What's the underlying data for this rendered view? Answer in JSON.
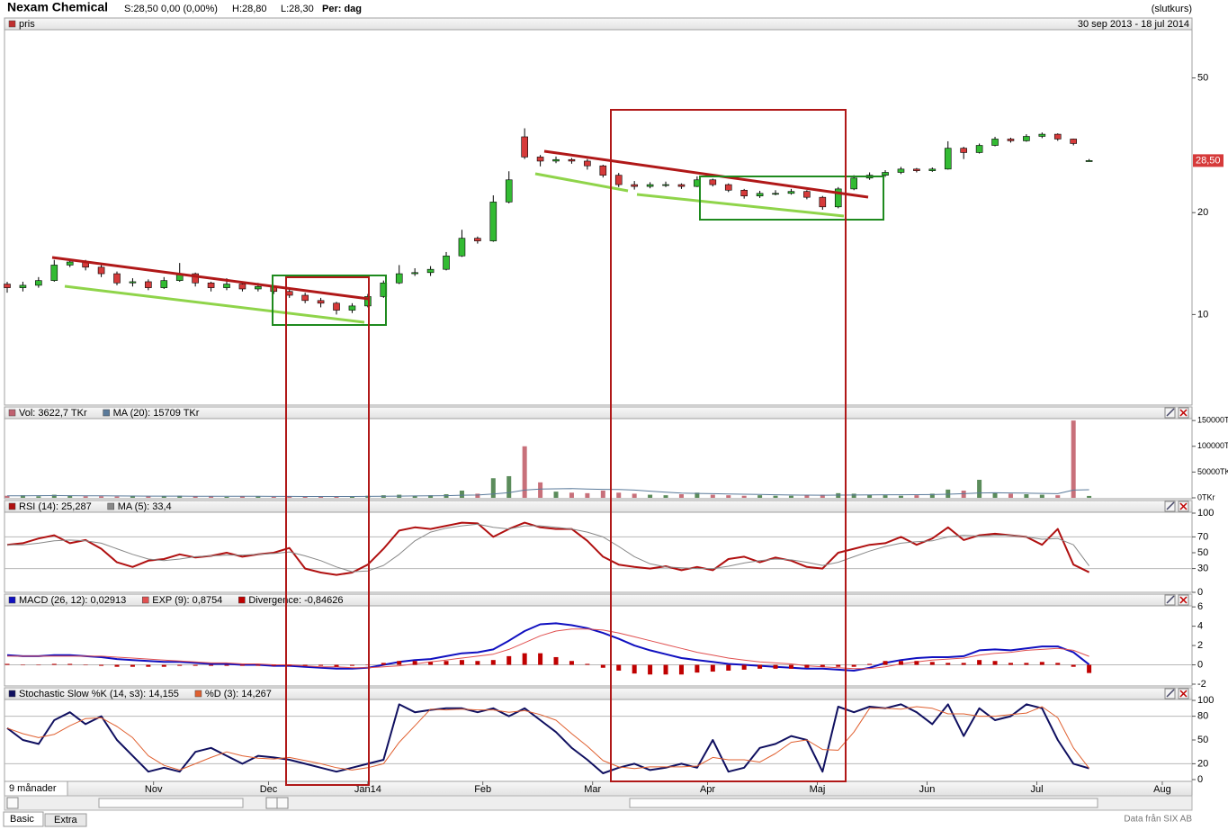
{
  "header": {
    "title": "Nexam Chemical",
    "quote": "S:28,50 0,00 (0,00%)",
    "high": "H:28,80",
    "low": "L:28,30",
    "period": "Per: dag",
    "mode": "(slutkurs)"
  },
  "x_axis": {
    "label": "9 månader",
    "xlim": [
      0,
      226
    ],
    "xticks": [
      {
        "value": 28,
        "label": "Nov"
      },
      {
        "value": 50,
        "label": "Dec"
      },
      {
        "value": 69,
        "label": "Jan14"
      },
      {
        "value": 91,
        "label": "Feb"
      },
      {
        "value": 112,
        "label": "Mar"
      },
      {
        "value": 134,
        "label": "Apr"
      },
      {
        "value": 155,
        "label": "Maj"
      },
      {
        "value": 176,
        "label": "Jun"
      },
      {
        "value": 197,
        "label": "Jul"
      },
      {
        "value": 221,
        "label": "Aug"
      }
    ],
    "x": [
      0,
      3,
      6,
      9,
      12,
      15,
      18,
      21,
      24,
      27,
      30,
      33,
      36,
      39,
      42,
      45,
      48,
      51,
      54,
      57,
      60,
      63,
      66,
      69,
      72,
      75,
      78,
      81,
      84,
      87,
      90,
      93,
      96,
      99,
      102,
      105,
      108,
      111,
      114,
      117,
      120,
      123,
      126,
      129,
      132,
      135,
      138,
      141,
      144,
      147,
      150,
      153,
      156,
      159,
      162,
      165,
      168,
      171,
      174,
      177,
      180,
      183,
      186,
      189,
      192,
      195,
      198,
      201,
      204,
      207
    ]
  },
  "footer": {
    "tabs": [
      "Basic",
      "Extra"
    ],
    "source": "Data från SIX AB"
  },
  "chart_data": [
    {
      "type": "candlestick",
      "legend": "pris",
      "legend_color": "#c03030",
      "subtitle": "30 sep 2013 - 18 jul 2014",
      "log_scale": true,
      "ylim": [
        5.4,
        69
      ],
      "yticks": [
        10,
        20,
        50
      ],
      "up_color": "#33bb33",
      "down_color": "#d63a3a",
      "last_label": {
        "value": 28.5,
        "label": "28,50"
      },
      "open": [
        12.3,
        12.0,
        12.2,
        12.6,
        14.0,
        14.3,
        13.8,
        13.2,
        12.4,
        12.5,
        12.0,
        12.6,
        13.2,
        12.4,
        12.0,
        12.3,
        11.9,
        12.1,
        11.7,
        11.4,
        11.0,
        10.8,
        10.3,
        10.6,
        11.3,
        12.4,
        13.2,
        13.3,
        13.6,
        14.9,
        16.8,
        16.5,
        21.5,
        33.5,
        29.2,
        28.4,
        28.7,
        28.4,
        27.5,
        25.8,
        24.2,
        23.9,
        24.2,
        24.2,
        23.9,
        25.0,
        24.2,
        23.3,
        22.4,
        22.8,
        22.8,
        23.1,
        22.2,
        20.8,
        23.5,
        25.3,
        25.8,
        26.3,
        26.9,
        26.6,
        26.9,
        31.0,
        30.1,
        31.6,
        33.0,
        32.6,
        33.6,
        34.1,
        33.0,
        28.3
      ],
      "high": [
        12.5,
        12.5,
        12.9,
        14.5,
        14.6,
        14.5,
        14.0,
        13.4,
        12.8,
        12.7,
        12.9,
        14.2,
        13.3,
        12.5,
        12.8,
        12.5,
        12.4,
        12.2,
        11.9,
        11.6,
        11.2,
        10.9,
        10.8,
        11.5,
        12.6,
        14.0,
        13.7,
        13.9,
        15.3,
        17.8,
        17.0,
        22.5,
        26.5,
        35.5,
        29.6,
        29.3,
        29.0,
        28.8,
        27.7,
        26.2,
        24.8,
        24.6,
        24.7,
        24.4,
        25.6,
        25.2,
        24.4,
        23.5,
        23.2,
        23.3,
        23.5,
        23.3,
        22.4,
        23.8,
        25.8,
        26.3,
        26.7,
        27.3,
        27.1,
        27.2,
        32.5,
        31.3,
        32.0,
        33.5,
        33.3,
        34.1,
        34.5,
        34.3,
        33.1,
        28.8
      ],
      "low": [
        11.6,
        11.7,
        12.0,
        12.5,
        13.8,
        13.5,
        12.9,
        12.2,
        12.1,
        11.8,
        11.9,
        12.5,
        12.1,
        11.7,
        11.8,
        11.7,
        11.7,
        11.5,
        11.2,
        10.8,
        10.5,
        10.0,
        10.1,
        10.5,
        11.2,
        12.3,
        13.0,
        13.0,
        13.5,
        14.8,
        16.2,
        16.4,
        21.3,
        28.8,
        27.4,
        28.0,
        27.9,
        26.8,
        25.4,
        23.8,
        23.4,
        23.6,
        23.8,
        23.5,
        23.8,
        23.9,
        23.0,
        22.0,
        22.1,
        22.5,
        22.6,
        21.9,
        20.4,
        20.6,
        23.3,
        25.0,
        25.5,
        26.0,
        26.3,
        26.4,
        26.8,
        28.8,
        29.9,
        31.4,
        32.2,
        32.4,
        33.2,
        32.6,
        31.6,
        28.3
      ],
      "close": [
        12.0,
        12.2,
        12.6,
        14.0,
        14.3,
        13.8,
        13.2,
        12.4,
        12.5,
        12.0,
        12.6,
        13.2,
        12.4,
        12.0,
        12.3,
        11.9,
        12.1,
        11.7,
        11.4,
        11.0,
        10.8,
        10.3,
        10.6,
        11.3,
        12.4,
        13.2,
        13.3,
        13.6,
        14.9,
        16.8,
        16.5,
        21.5,
        25.0,
        29.2,
        28.4,
        28.7,
        28.4,
        27.5,
        25.8,
        24.2,
        23.9,
        24.2,
        24.2,
        23.9,
        25.0,
        24.2,
        23.3,
        22.4,
        22.8,
        22.8,
        23.1,
        22.2,
        20.8,
        23.5,
        25.3,
        25.8,
        26.3,
        26.9,
        26.6,
        26.9,
        31.0,
        30.1,
        31.6,
        33.0,
        32.6,
        33.6,
        34.1,
        33.0,
        32.0,
        28.5
      ]
    },
    {
      "type": "bar",
      "ylim": [
        0,
        152000
      ],
      "yticks": [
        {
          "value": 0,
          "label": "0TKr"
        },
        {
          "value": 50000,
          "label": "50000TKr"
        },
        {
          "value": 100000,
          "label": "100000TKr"
        },
        {
          "value": 150000,
          "label": "150000TKr"
        }
      ],
      "series": [
        {
          "name": "Vol: 3622,7 TKr",
          "color": "#c06070",
          "up_color": "#5b8c5b",
          "down_color": "#c8707a",
          "values": [
            4000,
            5000,
            3000,
            6000,
            4000,
            3000,
            3000,
            2500,
            3000,
            2500,
            3500,
            4000,
            3000,
            2500,
            2000,
            3000,
            2500,
            2000,
            3000,
            2500,
            2000,
            3000,
            2500,
            4000,
            5000,
            6000,
            4000,
            5000,
            7000,
            14000,
            8000,
            38000,
            42000,
            100000,
            30000,
            12000,
            10000,
            9000,
            14000,
            10000,
            8000,
            6000,
            5000,
            7000,
            10000,
            6000,
            5000,
            4000,
            5000,
            4000,
            4000,
            5000,
            6000,
            9000,
            8000,
            6000,
            5000,
            4000,
            5000,
            8000,
            16000,
            14000,
            35000,
            10000,
            8000,
            7000,
            6000,
            5000,
            150000,
            3622.7
          ]
        },
        {
          "name": "MA (20): 15709 TKr",
          "color": "#5a7a9a",
          "type": "line",
          "values": [
            4000,
            4000,
            4200,
            4300,
            4200,
            4000,
            3900,
            3700,
            3500,
            3400,
            3300,
            3300,
            3200,
            3100,
            3000,
            3000,
            2900,
            2800,
            2800,
            2700,
            2700,
            2700,
            2700,
            2800,
            3000,
            3300,
            3600,
            3800,
            4200,
            5000,
            5500,
            7500,
            10000,
            15000,
            17000,
            17500,
            17800,
            17000,
            16500,
            16000,
            15000,
            13000,
            11000,
            9000,
            8500,
            8000,
            7500,
            7000,
            6500,
            6000,
            5500,
            5200,
            5000,
            5200,
            5500,
            5800,
            6000,
            6000,
            6100,
            6300,
            7000,
            8000,
            9500,
            9800,
            9500,
            9000,
            8500,
            8000,
            15000,
            15709
          ]
        }
      ]
    },
    {
      "type": "line",
      "ylim": [
        0,
        100
      ],
      "yticks": [
        0,
        30,
        50,
        70,
        100
      ],
      "ref_lines": [
        30,
        70
      ],
      "series": [
        {
          "name": "RSI (14): 25,287",
          "color": "#b01010",
          "values": [
            60,
            62,
            68,
            72,
            62,
            66,
            55,
            38,
            32,
            40,
            42,
            48,
            44,
            46,
            50,
            45,
            48,
            50,
            56,
            30,
            25,
            22,
            25,
            35,
            55,
            78,
            82,
            80,
            84,
            88,
            87,
            70,
            80,
            88,
            82,
            80,
            80,
            65,
            45,
            35,
            32,
            30,
            33,
            28,
            32,
            28,
            42,
            45,
            38,
            44,
            40,
            32,
            30,
            50,
            55,
            60,
            62,
            70,
            60,
            68,
            82,
            66,
            72,
            74,
            72,
            70,
            60,
            80,
            35,
            25.287
          ]
        },
        {
          "name": "MA (5): 33,4",
          "color": "#888888",
          "values": [
            60,
            60,
            62,
            65,
            66,
            65,
            62,
            55,
            48,
            42,
            40,
            42,
            45,
            46,
            47,
            47,
            48,
            49,
            51,
            46,
            40,
            32,
            26,
            27,
            34,
            48,
            65,
            76,
            81,
            84,
            86,
            82,
            80,
            84,
            84,
            82,
            80,
            76,
            70,
            58,
            45,
            36,
            32,
            31,
            30,
            30,
            33,
            37,
            40,
            42,
            41,
            38,
            34,
            38,
            45,
            52,
            58,
            62,
            64,
            65,
            70,
            72,
            71,
            72,
            72,
            70,
            67,
            68,
            60,
            33.4
          ]
        }
      ]
    },
    {
      "type": "line",
      "ylim": [
        -2,
        6.2
      ],
      "yticks": [
        -2,
        0,
        2,
        4,
        6
      ],
      "ref_lines": [
        0
      ],
      "series": [
        {
          "name": "MACD (26, 12): 0,02913",
          "color": "#1010c0",
          "values": [
            1.0,
            0.9,
            0.9,
            1.0,
            1.0,
            0.9,
            0.8,
            0.6,
            0.5,
            0.4,
            0.3,
            0.3,
            0.2,
            0.1,
            0.1,
            0.0,
            0.0,
            -0.1,
            -0.1,
            -0.2,
            -0.3,
            -0.4,
            -0.4,
            -0.3,
            0.0,
            0.3,
            0.5,
            0.6,
            0.9,
            1.2,
            1.3,
            1.6,
            2.5,
            3.5,
            4.2,
            4.3,
            4.1,
            3.8,
            3.3,
            2.7,
            2.0,
            1.5,
            1.1,
            0.7,
            0.5,
            0.3,
            0.1,
            0.0,
            -0.1,
            -0.2,
            -0.3,
            -0.4,
            -0.4,
            -0.5,
            -0.6,
            -0.3,
            0.2,
            0.5,
            0.7,
            0.8,
            0.8,
            0.9,
            1.5,
            1.6,
            1.5,
            1.7,
            1.9,
            1.9,
            1.3,
            0.02913
          ]
        },
        {
          "name": "EXP (9): 0,8754",
          "color": "#e05050",
          "values": [
            0.9,
            0.9,
            0.9,
            0.9,
            0.9,
            0.9,
            0.9,
            0.8,
            0.7,
            0.6,
            0.5,
            0.4,
            0.3,
            0.2,
            0.2,
            0.1,
            0.1,
            0.0,
            0.0,
            -0.1,
            -0.2,
            -0.2,
            -0.3,
            -0.3,
            -0.2,
            -0.1,
            0.1,
            0.3,
            0.5,
            0.7,
            0.9,
            1.1,
            1.6,
            2.3,
            3.0,
            3.5,
            3.7,
            3.7,
            3.6,
            3.3,
            2.9,
            2.5,
            2.1,
            1.7,
            1.3,
            1.0,
            0.7,
            0.5,
            0.3,
            0.2,
            0.1,
            -0.1,
            -0.2,
            -0.3,
            -0.4,
            -0.4,
            -0.2,
            0.1,
            0.3,
            0.5,
            0.6,
            0.7,
            1.0,
            1.2,
            1.3,
            1.5,
            1.6,
            1.7,
            1.5,
            0.8754
          ]
        },
        {
          "name": "Divergence: -0,84626",
          "color": "#c00000",
          "type": "bar",
          "values": [
            0.1,
            0,
            0,
            0.1,
            0.1,
            0,
            -0.1,
            -0.2,
            -0.2,
            -0.2,
            -0.2,
            -0.1,
            -0.1,
            -0.1,
            -0.1,
            -0.1,
            -0.1,
            -0.1,
            -0.1,
            -0.1,
            -0.1,
            -0.2,
            -0.1,
            0,
            0.2,
            0.4,
            0.4,
            0.3,
            0.4,
            0.5,
            0.4,
            0.5,
            0.9,
            1.2,
            1.2,
            0.8,
            0.4,
            0.1,
            -0.3,
            -0.6,
            -0.9,
            -1.0,
            -1.0,
            -1.0,
            -0.8,
            -0.7,
            -0.6,
            -0.5,
            -0.4,
            -0.4,
            -0.4,
            -0.3,
            -0.2,
            -0.2,
            -0.2,
            0.1,
            0.4,
            0.4,
            0.4,
            0.3,
            0.2,
            0.2,
            0.5,
            0.4,
            0.2,
            0.2,
            0.3,
            0.2,
            -0.2,
            -0.84626
          ]
        }
      ]
    },
    {
      "type": "line",
      "ylim": [
        0,
        100
      ],
      "yticks": [
        0,
        20,
        50,
        80,
        100
      ],
      "ref_lines": [
        20,
        80
      ],
      "series": [
        {
          "name": "Stochastic Slow %K (14, s3): 14,155",
          "color": "#101060",
          "values": [
            65,
            50,
            45,
            75,
            85,
            70,
            80,
            50,
            30,
            10,
            15,
            10,
            35,
            40,
            30,
            20,
            30,
            28,
            25,
            20,
            15,
            10,
            15,
            20,
            25,
            95,
            85,
            88,
            90,
            90,
            85,
            90,
            80,
            90,
            75,
            60,
            40,
            25,
            8,
            15,
            20,
            12,
            15,
            20,
            15,
            50,
            10,
            15,
            40,
            45,
            55,
            50,
            10,
            92,
            85,
            92,
            90,
            95,
            85,
            70,
            95,
            55,
            90,
            75,
            80,
            95,
            90,
            50,
            20,
            14.155
          ]
        },
        {
          "name": "%D (3): 14,267",
          "color": "#e06030",
          "values": [
            65,
            58,
            53,
            57,
            68,
            77,
            78,
            67,
            53,
            30,
            18,
            12,
            20,
            28,
            35,
            30,
            27,
            26,
            28,
            24,
            20,
            15,
            12,
            15,
            20,
            47,
            68,
            89,
            88,
            89,
            88,
            88,
            85,
            87,
            82,
            75,
            58,
            42,
            24,
            16,
            14,
            16,
            16,
            16,
            17,
            28,
            25,
            25,
            22,
            33,
            47,
            50,
            38,
            37,
            60,
            90,
            90,
            89,
            92,
            90,
            83,
            83,
            80,
            80,
            82,
            84,
            92,
            78,
            40,
            14.267
          ]
        }
      ]
    }
  ]
}
